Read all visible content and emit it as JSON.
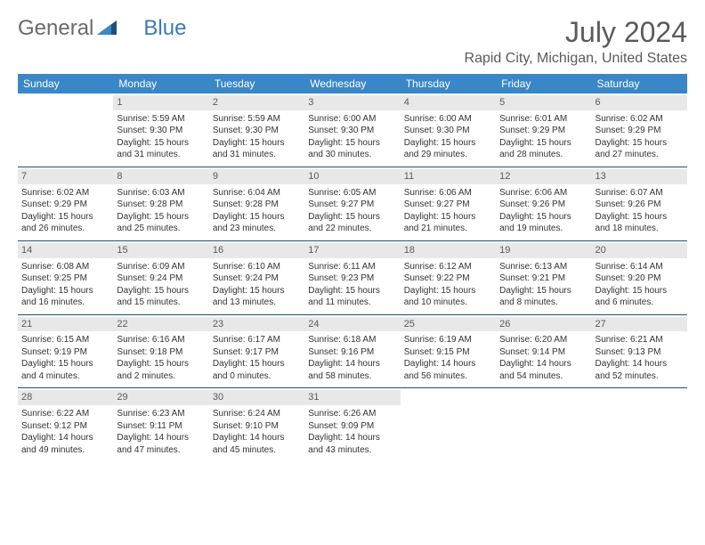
{
  "logo": {
    "text1": "General",
    "text2": "Blue"
  },
  "header": {
    "month": "July 2024",
    "location": "Rapid City, Michigan, United States"
  },
  "weekdays": [
    "Sunday",
    "Monday",
    "Tuesday",
    "Wednesday",
    "Thursday",
    "Friday",
    "Saturday"
  ],
  "colors": {
    "header_bar": "#3a87c7",
    "separator": "#1f4e79",
    "daynum_bg": "#e8e8e8",
    "text": "#333333",
    "muted": "#5a5a5a",
    "logo_blue": "#3a7ab8"
  },
  "weeks": [
    [
      {
        "n": "",
        "sr": "",
        "ss": "",
        "dl": ""
      },
      {
        "n": "1",
        "sr": "Sunrise: 5:59 AM",
        "ss": "Sunset: 9:30 PM",
        "dl": "Daylight: 15 hours and 31 minutes."
      },
      {
        "n": "2",
        "sr": "Sunrise: 5:59 AM",
        "ss": "Sunset: 9:30 PM",
        "dl": "Daylight: 15 hours and 31 minutes."
      },
      {
        "n": "3",
        "sr": "Sunrise: 6:00 AM",
        "ss": "Sunset: 9:30 PM",
        "dl": "Daylight: 15 hours and 30 minutes."
      },
      {
        "n": "4",
        "sr": "Sunrise: 6:00 AM",
        "ss": "Sunset: 9:30 PM",
        "dl": "Daylight: 15 hours and 29 minutes."
      },
      {
        "n": "5",
        "sr": "Sunrise: 6:01 AM",
        "ss": "Sunset: 9:29 PM",
        "dl": "Daylight: 15 hours and 28 minutes."
      },
      {
        "n": "6",
        "sr": "Sunrise: 6:02 AM",
        "ss": "Sunset: 9:29 PM",
        "dl": "Daylight: 15 hours and 27 minutes."
      }
    ],
    [
      {
        "n": "7",
        "sr": "Sunrise: 6:02 AM",
        "ss": "Sunset: 9:29 PM",
        "dl": "Daylight: 15 hours and 26 minutes."
      },
      {
        "n": "8",
        "sr": "Sunrise: 6:03 AM",
        "ss": "Sunset: 9:28 PM",
        "dl": "Daylight: 15 hours and 25 minutes."
      },
      {
        "n": "9",
        "sr": "Sunrise: 6:04 AM",
        "ss": "Sunset: 9:28 PM",
        "dl": "Daylight: 15 hours and 23 minutes."
      },
      {
        "n": "10",
        "sr": "Sunrise: 6:05 AM",
        "ss": "Sunset: 9:27 PM",
        "dl": "Daylight: 15 hours and 22 minutes."
      },
      {
        "n": "11",
        "sr": "Sunrise: 6:06 AM",
        "ss": "Sunset: 9:27 PM",
        "dl": "Daylight: 15 hours and 21 minutes."
      },
      {
        "n": "12",
        "sr": "Sunrise: 6:06 AM",
        "ss": "Sunset: 9:26 PM",
        "dl": "Daylight: 15 hours and 19 minutes."
      },
      {
        "n": "13",
        "sr": "Sunrise: 6:07 AM",
        "ss": "Sunset: 9:26 PM",
        "dl": "Daylight: 15 hours and 18 minutes."
      }
    ],
    [
      {
        "n": "14",
        "sr": "Sunrise: 6:08 AM",
        "ss": "Sunset: 9:25 PM",
        "dl": "Daylight: 15 hours and 16 minutes."
      },
      {
        "n": "15",
        "sr": "Sunrise: 6:09 AM",
        "ss": "Sunset: 9:24 PM",
        "dl": "Daylight: 15 hours and 15 minutes."
      },
      {
        "n": "16",
        "sr": "Sunrise: 6:10 AM",
        "ss": "Sunset: 9:24 PM",
        "dl": "Daylight: 15 hours and 13 minutes."
      },
      {
        "n": "17",
        "sr": "Sunrise: 6:11 AM",
        "ss": "Sunset: 9:23 PM",
        "dl": "Daylight: 15 hours and 11 minutes."
      },
      {
        "n": "18",
        "sr": "Sunrise: 6:12 AM",
        "ss": "Sunset: 9:22 PM",
        "dl": "Daylight: 15 hours and 10 minutes."
      },
      {
        "n": "19",
        "sr": "Sunrise: 6:13 AM",
        "ss": "Sunset: 9:21 PM",
        "dl": "Daylight: 15 hours and 8 minutes."
      },
      {
        "n": "20",
        "sr": "Sunrise: 6:14 AM",
        "ss": "Sunset: 9:20 PM",
        "dl": "Daylight: 15 hours and 6 minutes."
      }
    ],
    [
      {
        "n": "21",
        "sr": "Sunrise: 6:15 AM",
        "ss": "Sunset: 9:19 PM",
        "dl": "Daylight: 15 hours and 4 minutes."
      },
      {
        "n": "22",
        "sr": "Sunrise: 6:16 AM",
        "ss": "Sunset: 9:18 PM",
        "dl": "Daylight: 15 hours and 2 minutes."
      },
      {
        "n": "23",
        "sr": "Sunrise: 6:17 AM",
        "ss": "Sunset: 9:17 PM",
        "dl": "Daylight: 15 hours and 0 minutes."
      },
      {
        "n": "24",
        "sr": "Sunrise: 6:18 AM",
        "ss": "Sunset: 9:16 PM",
        "dl": "Daylight: 14 hours and 58 minutes."
      },
      {
        "n": "25",
        "sr": "Sunrise: 6:19 AM",
        "ss": "Sunset: 9:15 PM",
        "dl": "Daylight: 14 hours and 56 minutes."
      },
      {
        "n": "26",
        "sr": "Sunrise: 6:20 AM",
        "ss": "Sunset: 9:14 PM",
        "dl": "Daylight: 14 hours and 54 minutes."
      },
      {
        "n": "27",
        "sr": "Sunrise: 6:21 AM",
        "ss": "Sunset: 9:13 PM",
        "dl": "Daylight: 14 hours and 52 minutes."
      }
    ],
    [
      {
        "n": "28",
        "sr": "Sunrise: 6:22 AM",
        "ss": "Sunset: 9:12 PM",
        "dl": "Daylight: 14 hours and 49 minutes."
      },
      {
        "n": "29",
        "sr": "Sunrise: 6:23 AM",
        "ss": "Sunset: 9:11 PM",
        "dl": "Daylight: 14 hours and 47 minutes."
      },
      {
        "n": "30",
        "sr": "Sunrise: 6:24 AM",
        "ss": "Sunset: 9:10 PM",
        "dl": "Daylight: 14 hours and 45 minutes."
      },
      {
        "n": "31",
        "sr": "Sunrise: 6:26 AM",
        "ss": "Sunset: 9:09 PM",
        "dl": "Daylight: 14 hours and 43 minutes."
      },
      {
        "n": "",
        "sr": "",
        "ss": "",
        "dl": ""
      },
      {
        "n": "",
        "sr": "",
        "ss": "",
        "dl": ""
      },
      {
        "n": "",
        "sr": "",
        "ss": "",
        "dl": ""
      }
    ]
  ]
}
